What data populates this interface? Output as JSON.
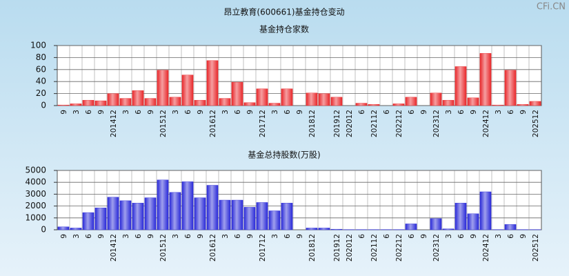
{
  "title": "昂立教育(600661)基金持仓变动",
  "watermark": "CFi.CN",
  "chart_data": [
    {
      "type": "bar",
      "title": "基金持仓家数",
      "categories": [
        "9",
        "3",
        "6",
        "9",
        "201412",
        "3",
        "6",
        "9",
        "201512",
        "3",
        "6",
        "9",
        "201612",
        "3",
        "6",
        "9",
        "201712",
        "3",
        "6",
        "9",
        "201812",
        null,
        "201912",
        "202012",
        "6",
        "202112",
        "6",
        "202212",
        "6",
        "9",
        "202312",
        "3",
        "6",
        "9",
        "202412",
        "3",
        "6",
        "9",
        "202512"
      ],
      "values": [
        1,
        3,
        9,
        8,
        20,
        12,
        25,
        12,
        59,
        14,
        51,
        9,
        75,
        12,
        39,
        5,
        28,
        4,
        28,
        0,
        21,
        20,
        14,
        0,
        4,
        2,
        0,
        3,
        14,
        0,
        21,
        9,
        65,
        13,
        87,
        1,
        59,
        2,
        7
      ],
      "color": "#e8282b",
      "ylim": [
        0,
        100
      ],
      "yticks": [
        0,
        20,
        40,
        60,
        80,
        100
      ],
      "grid": true
    },
    {
      "type": "bar",
      "title": "基金总持股数(万股)",
      "categories": [
        "9",
        "3",
        "6",
        "9",
        "201412",
        "3",
        "6",
        "9",
        "201512",
        "3",
        "6",
        "9",
        "201612",
        "3",
        "6",
        "9",
        "201712",
        "3",
        "6",
        "9",
        "201812",
        null,
        "201912",
        "202012",
        "6",
        "202112",
        "6",
        "202212",
        "6",
        "9",
        "202312",
        "3",
        "6",
        "9",
        "202412",
        "3",
        "6",
        "9",
        "202512"
      ],
      "values": [
        250,
        150,
        1450,
        1850,
        2750,
        2450,
        2250,
        2700,
        4200,
        3150,
        4050,
        2700,
        3750,
        2500,
        2500,
        1900,
        2300,
        1600,
        2250,
        0,
        150,
        150,
        50,
        20,
        20,
        20,
        20,
        20,
        500,
        0,
        950,
        80,
        2250,
        1350,
        3200,
        20,
        450,
        20,
        20
      ],
      "color": "#2a2ad8",
      "ylim": [
        0,
        5000
      ],
      "yticks": [
        0,
        1000,
        2000,
        3000,
        4000,
        5000
      ],
      "grid": true
    }
  ]
}
